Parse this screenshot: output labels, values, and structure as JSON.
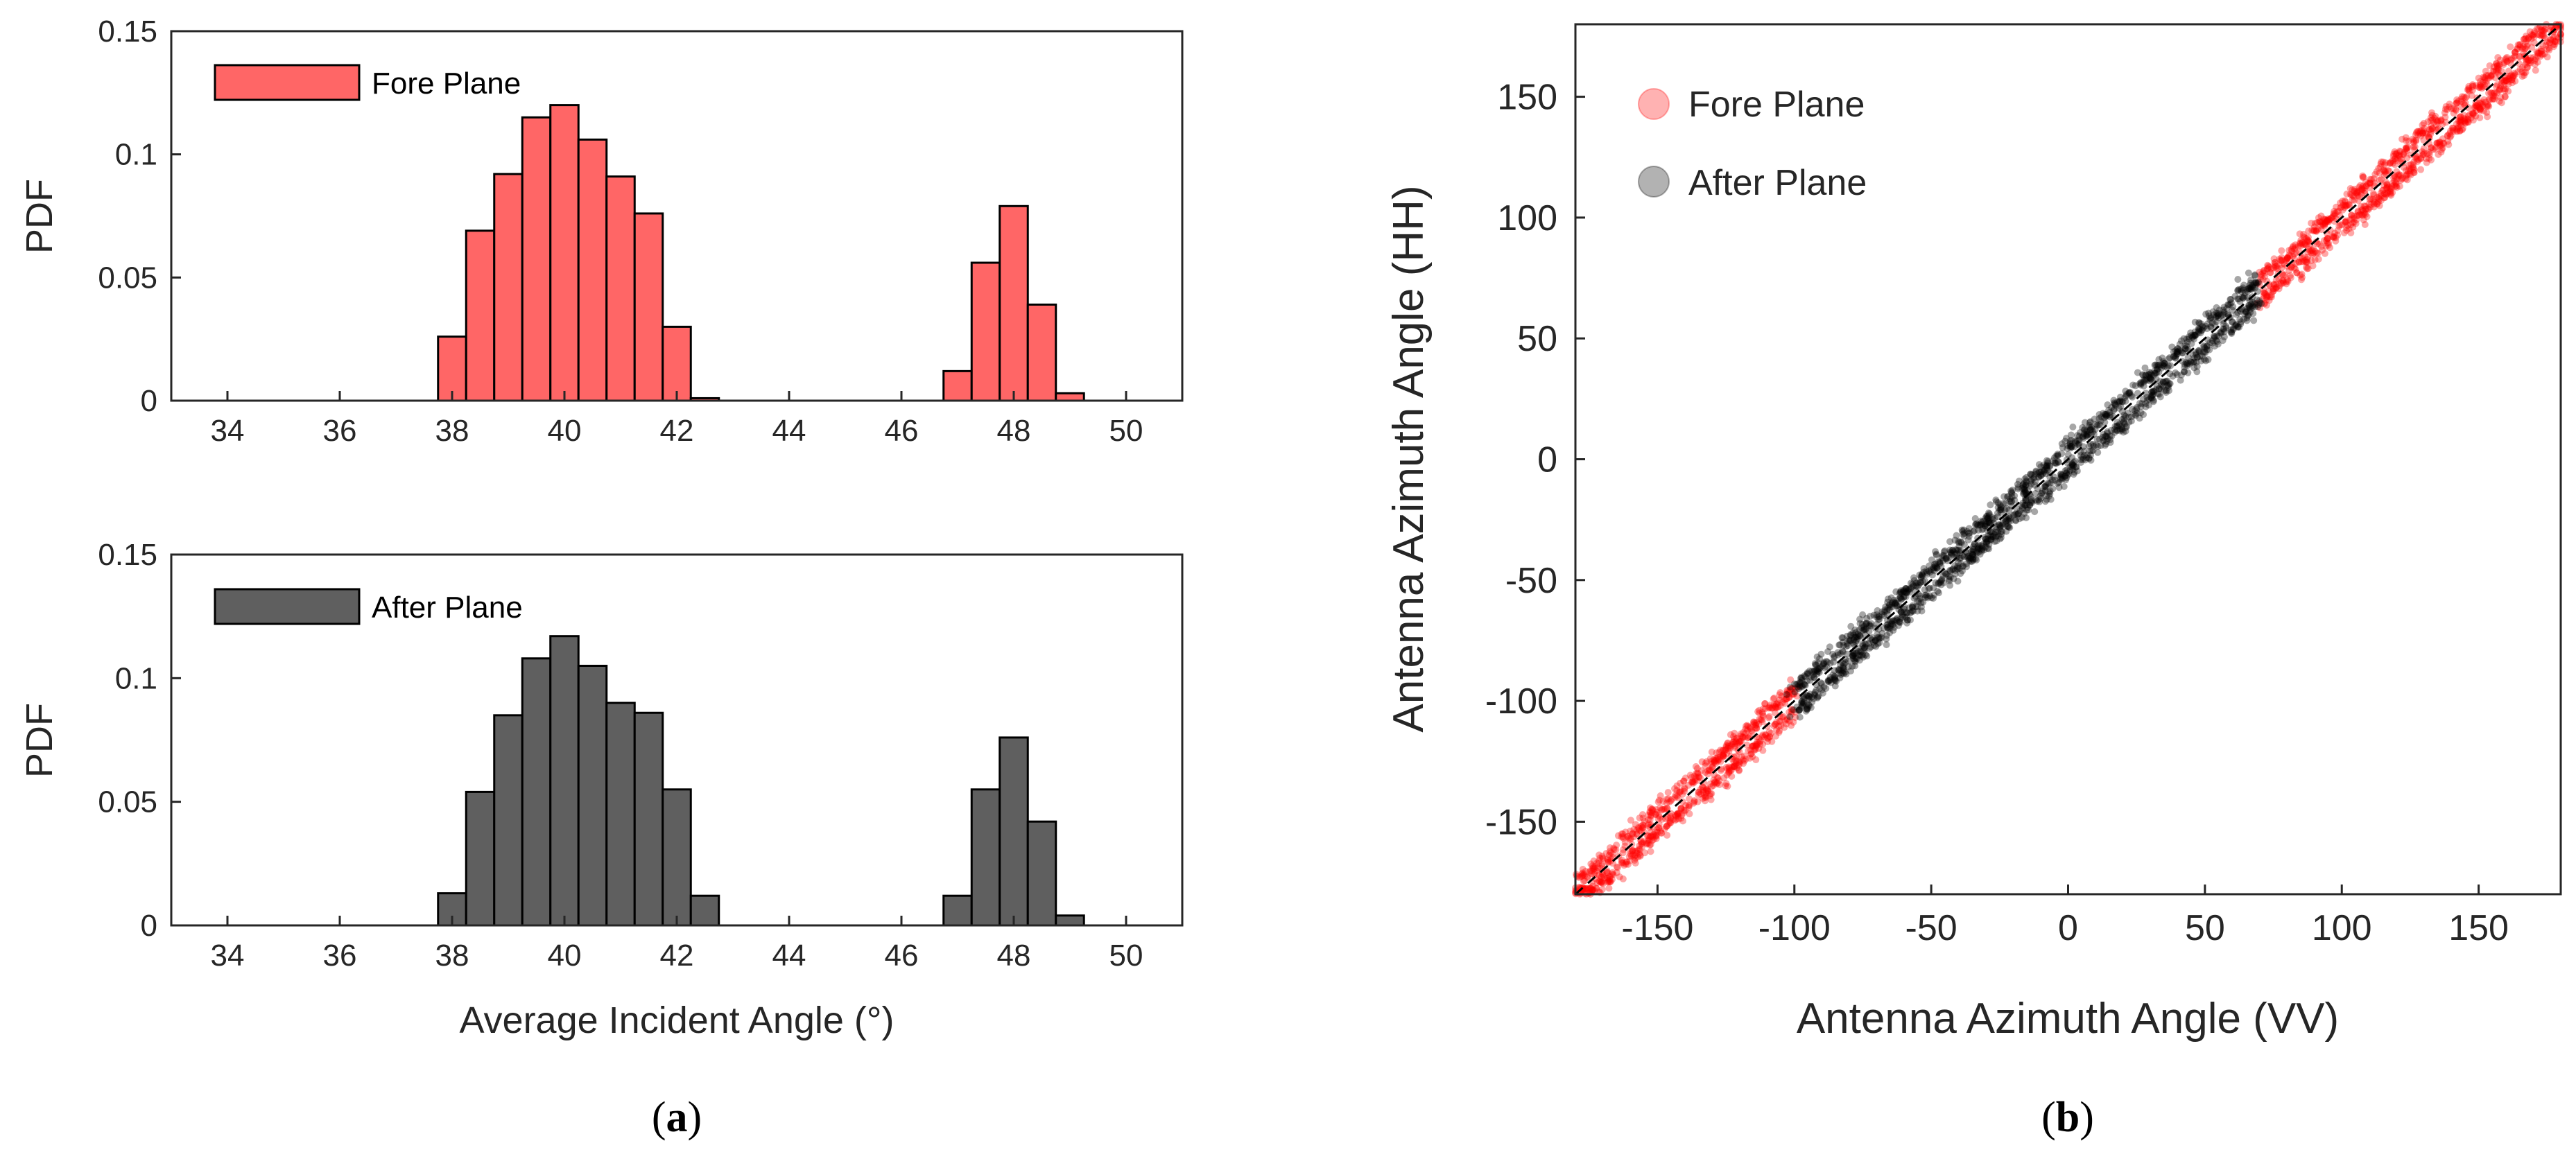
{
  "chart_data": [
    {
      "type": "bar",
      "panel": "a-top",
      "title": "",
      "xlabel": "",
      "ylabel": "PDF",
      "xlim": [
        33,
        51
      ],
      "ylim": [
        0,
        0.15
      ],
      "xticks": [
        "34",
        "36",
        "38",
        "40",
        "42",
        "44",
        "46",
        "48",
        "50"
      ],
      "yticks": [
        "0",
        "0.05",
        "0.1",
        "0.15"
      ],
      "legend": "Fore Plane",
      "color": "#ff6666",
      "bin_width": 0.5,
      "bins": [
        {
          "x": 38,
          "value": 0.026
        },
        {
          "x": 38.5,
          "value": 0.069
        },
        {
          "x": 39,
          "value": 0.092
        },
        {
          "x": 39.5,
          "value": 0.115
        },
        {
          "x": 40,
          "value": 0.12
        },
        {
          "x": 40.5,
          "value": 0.106
        },
        {
          "x": 41,
          "value": 0.091
        },
        {
          "x": 41.5,
          "value": 0.076
        },
        {
          "x": 42,
          "value": 0.03
        },
        {
          "x": 42.5,
          "value": 0.001
        },
        {
          "x": 47,
          "value": 0.012
        },
        {
          "x": 47.5,
          "value": 0.056
        },
        {
          "x": 48,
          "value": 0.079
        },
        {
          "x": 48.5,
          "value": 0.039
        },
        {
          "x": 49,
          "value": 0.003
        }
      ]
    },
    {
      "type": "bar",
      "panel": "a-bottom",
      "title": "",
      "xlabel": "Average Incident Angle (°)",
      "ylabel": "PDF",
      "xlim": [
        33,
        51
      ],
      "ylim": [
        0,
        0.15
      ],
      "xticks": [
        "34",
        "36",
        "38",
        "40",
        "42",
        "44",
        "46",
        "48",
        "50"
      ],
      "yticks": [
        "0",
        "0.05",
        "0.1",
        "0.15"
      ],
      "legend": "After Plane",
      "color": "#5f5f5f",
      "bin_width": 0.5,
      "bins": [
        {
          "x": 38,
          "value": 0.013
        },
        {
          "x": 38.5,
          "value": 0.054
        },
        {
          "x": 39,
          "value": 0.085
        },
        {
          "x": 39.5,
          "value": 0.108
        },
        {
          "x": 40,
          "value": 0.117
        },
        {
          "x": 40.5,
          "value": 0.105
        },
        {
          "x": 41,
          "value": 0.09
        },
        {
          "x": 41.5,
          "value": 0.086
        },
        {
          "x": 42,
          "value": 0.055
        },
        {
          "x": 42.5,
          "value": 0.012
        },
        {
          "x": 47,
          "value": 0.012
        },
        {
          "x": 47.5,
          "value": 0.055
        },
        {
          "x": 48,
          "value": 0.076
        },
        {
          "x": 48.5,
          "value": 0.042
        },
        {
          "x": 49,
          "value": 0.004
        }
      ]
    },
    {
      "type": "scatter",
      "panel": "b",
      "title": "",
      "xlabel": "Antenna Azimuth Angle (VV)",
      "ylabel": "Antenna Azimuth Angle (HH)",
      "xlim": [
        -180,
        180
      ],
      "ylim": [
        -180,
        180
      ],
      "xticks": [
        "-150",
        "-100",
        "-50",
        "0",
        "50",
        "100",
        "150"
      ],
      "yticks": [
        "-150",
        "-100",
        "-50",
        "0",
        "50",
        "100",
        "150"
      ],
      "reference_line": "y = x (dashed)",
      "series": [
        {
          "name": "Fore Plane",
          "color": "#ff0000",
          "x_segments": [
            [
              -180,
              -100
            ],
            [
              70,
              180
            ]
          ]
        },
        {
          "name": "After Plane",
          "color": "#000000",
          "x_segments": [
            [
              -100,
              70
            ]
          ]
        }
      ]
    }
  ],
  "panel_labels": {
    "a": "a",
    "b": "b"
  }
}
